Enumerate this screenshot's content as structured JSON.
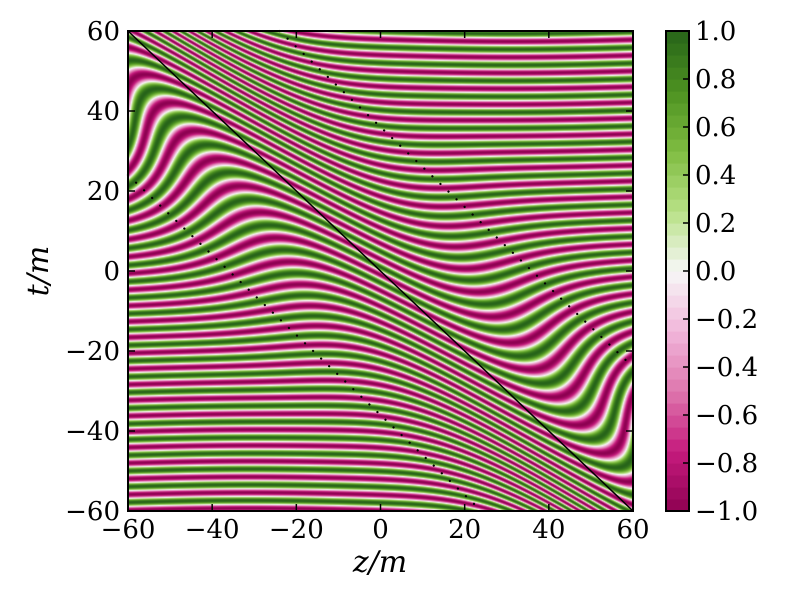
{
  "chart_data": {
    "type": "heatmap",
    "xlabel": "z/m",
    "ylabel": "t/m",
    "xlim": [
      -60,
      60
    ],
    "ylim": [
      -60,
      60
    ],
    "x_ticks": [
      -60,
      -40,
      -20,
      0,
      20,
      40,
      60
    ],
    "x_tick_labels": [
      "−60",
      "−40",
      "−20",
      "0",
      "20",
      "40",
      "60"
    ],
    "y_ticks": [
      -60,
      -40,
      -20,
      0,
      20,
      40,
      60
    ],
    "y_tick_labels": [
      "−60",
      "−40",
      "−20",
      "0",
      "20",
      "40",
      "60"
    ],
    "colorbar": {
      "range": [
        -1.0,
        1.0
      ],
      "ticks": [
        -1.0,
        -0.8,
        -0.6,
        -0.4,
        -0.2,
        0.0,
        0.2,
        0.4,
        0.6,
        0.8,
        1.0
      ],
      "tick_labels": [
        "−1.0",
        "−0.8",
        "−0.6",
        "−0.4",
        "−0.2",
        "0.0",
        "0.2",
        "0.4",
        "0.6",
        "0.8",
        "1.0"
      ],
      "colormap": "PiYG",
      "low_color": "#8e0152",
      "mid_color": "#f7f7f7",
      "high_color": "#276419"
    },
    "lines": [
      {
        "style": "solid",
        "color": "#000000",
        "points": [
          [
            -60,
            60
          ],
          [
            60,
            -60
          ]
        ]
      },
      {
        "style": "dotted",
        "color": "#000000",
        "points": [
          [
            -60,
            24
          ],
          [
            24,
            -60
          ]
        ]
      },
      {
        "style": "dotted",
        "color": "#000000",
        "points": [
          [
            -24,
            60
          ],
          [
            60,
            -24
          ]
        ]
      }
    ],
    "grid": false
  }
}
